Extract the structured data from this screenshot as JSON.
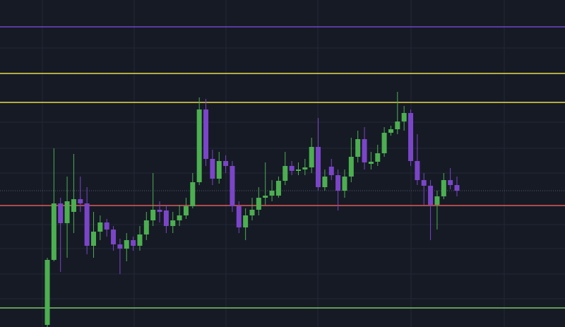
{
  "chart_data": {
    "type": "candlestick",
    "ylim": [
      0,
      463
    ],
    "up_color": "#4caf50",
    "down_color": "#7b45c8",
    "open": [
      3,
      95,
      175,
      147,
      163,
      181,
      175,
      115,
      135,
      148,
      138,
      117,
      111,
      123,
      115,
      131,
      151,
      166,
      165,
      143,
      151,
      158,
      171,
      205,
      308,
      238,
      210,
      235,
      228,
      171,
      141,
      158,
      166,
      183,
      186,
      186,
      207,
      228,
      221,
      223,
      226,
      255,
      198,
      227,
      215,
      193,
      213,
      241,
      266,
      231,
      234,
      246,
      275,
      280,
      291,
      303,
      235,
      208,
      200,
      173,
      185,
      208,
      201
    ],
    "high": [
      98,
      253,
      183,
      213,
      245,
      213,
      198,
      163,
      158,
      153,
      143,
      125,
      133,
      128,
      143,
      163,
      218,
      178,
      173,
      163,
      173,
      183,
      218,
      325,
      323,
      251,
      248,
      243,
      235,
      178,
      168,
      183,
      198,
      233,
      208,
      213,
      248,
      235,
      233,
      238,
      268,
      296,
      223,
      238,
      223,
      223,
      268,
      278,
      283,
      248,
      258,
      283,
      285,
      333,
      313,
      308,
      273,
      218,
      208,
      193,
      218,
      225,
      213
    ],
    "low": [
      0,
      93,
      78,
      98,
      133,
      163,
      103,
      98,
      123,
      128,
      108,
      75,
      93,
      108,
      108,
      123,
      143,
      148,
      133,
      133,
      143,
      153,
      168,
      201,
      228,
      201,
      203,
      218,
      163,
      133,
      123,
      151,
      158,
      173,
      178,
      183,
      201,
      215,
      215,
      215,
      218,
      193,
      193,
      208,
      165,
      183,
      205,
      233,
      223,
      223,
      228,
      241,
      271,
      273,
      278,
      228,
      201,
      173,
      123,
      138,
      181,
      195,
      185
    ],
    "close": [
      95,
      175,
      147,
      178,
      181,
      175,
      115,
      135,
      148,
      138,
      117,
      111,
      123,
      115,
      131,
      151,
      166,
      163,
      143,
      151,
      158,
      171,
      205,
      308,
      238,
      210,
      235,
      228,
      171,
      141,
      158,
      166,
      183,
      186,
      193,
      207,
      228,
      221,
      223,
      226,
      255,
      198,
      213,
      215,
      193,
      213,
      241,
      266,
      233,
      234,
      246,
      275,
      280,
      291,
      303,
      235,
      208,
      200,
      173,
      185,
      208,
      201,
      193
    ],
    "levels": [
      {
        "value": 425,
        "color": "#6f45c8",
        "style": "solid"
      },
      {
        "value": 359,
        "color": "#e6dc4c",
        "style": "solid"
      },
      {
        "value": 318,
        "color": "#e6dc4c",
        "style": "solid"
      },
      {
        "value": 193,
        "color": "#545a70",
        "style": "dotted"
      },
      {
        "value": 172,
        "color": "#e05a5a",
        "style": "solid"
      },
      {
        "value": 27,
        "color": "#7cc46a",
        "style": "solid"
      }
    ]
  }
}
